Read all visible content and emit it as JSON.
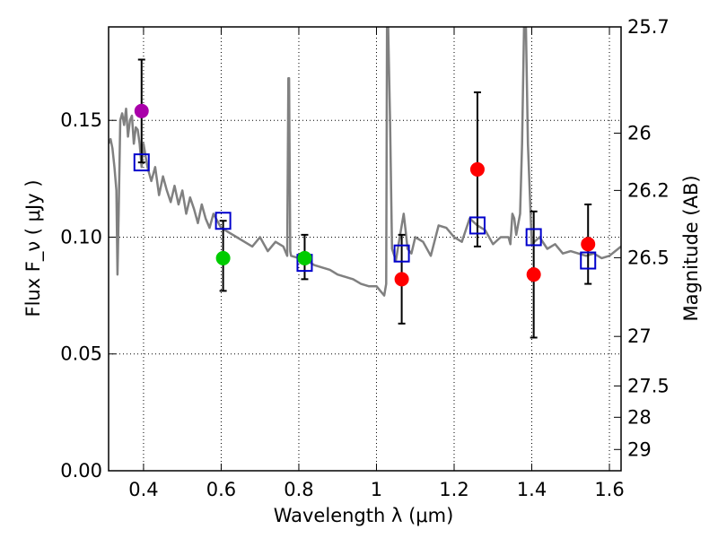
{
  "chart_data": {
    "type": "scatter",
    "title": "",
    "xlabel": "Wavelength  λ (μm)",
    "ylabel": "Flux  F_ν  ( μJy )",
    "ylabel_right": "Magnitude (AB)",
    "xlim": [
      0.31,
      1.63
    ],
    "ylim": [
      0.0,
      0.19
    ],
    "grid": true,
    "x_ticks": [
      0.4,
      0.6,
      0.8,
      1.0,
      1.2,
      1.4,
      1.6
    ],
    "x_tick_labels": [
      "0.4",
      "0.6",
      "0.8",
      "1",
      "1.2",
      "1.4",
      "1.6"
    ],
    "y_ticks": [
      0.0,
      0.05,
      0.1,
      0.15
    ],
    "y_tick_labels": [
      "0.00",
      "0.05",
      "0.10",
      "0.15"
    ],
    "right_ticks": [
      {
        "flux": 0.19,
        "label": "25.7"
      },
      {
        "flux": 0.1445,
        "label": "26"
      },
      {
        "flux": 0.12,
        "label": "26.2"
      },
      {
        "flux": 0.0912,
        "label": "26.5"
      },
      {
        "flux": 0.0575,
        "label": "27"
      },
      {
        "flux": 0.0363,
        "label": "27.5"
      },
      {
        "flux": 0.0229,
        "label": "28"
      },
      {
        "flux": 0.0091,
        "label": "29"
      }
    ],
    "series": [
      {
        "name": "model spectrum",
        "style": "line",
        "color": "#808080",
        "x": [
          0.31,
          0.315,
          0.32,
          0.325,
          0.33,
          0.333,
          0.336,
          0.34,
          0.345,
          0.35,
          0.355,
          0.36,
          0.365,
          0.37,
          0.375,
          0.38,
          0.385,
          0.39,
          0.395,
          0.4,
          0.41,
          0.42,
          0.43,
          0.44,
          0.45,
          0.46,
          0.47,
          0.48,
          0.49,
          0.5,
          0.51,
          0.52,
          0.53,
          0.54,
          0.55,
          0.56,
          0.57,
          0.58,
          0.6,
          0.62,
          0.64,
          0.66,
          0.68,
          0.7,
          0.72,
          0.74,
          0.76,
          0.77,
          0.773,
          0.775,
          0.778,
          0.78,
          0.8,
          0.82,
          0.84,
          0.86,
          0.88,
          0.9,
          0.92,
          0.94,
          0.96,
          0.98,
          1.0,
          1.01,
          1.02,
          1.025,
          1.027,
          1.03,
          1.035,
          1.04,
          1.05,
          1.06,
          1.07,
          1.075,
          1.08,
          1.09,
          1.1,
          1.12,
          1.14,
          1.16,
          1.18,
          1.2,
          1.22,
          1.24,
          1.26,
          1.28,
          1.3,
          1.32,
          1.34,
          1.345,
          1.35,
          1.355,
          1.36,
          1.37,
          1.375,
          1.38,
          1.385,
          1.39,
          1.4,
          1.42,
          1.44,
          1.46,
          1.48,
          1.5,
          1.52,
          1.54,
          1.56,
          1.58,
          1.6,
          1.63
        ],
        "y": [
          0.14,
          0.142,
          0.138,
          0.13,
          0.12,
          0.084,
          0.11,
          0.15,
          0.153,
          0.148,
          0.155,
          0.143,
          0.15,
          0.152,
          0.14,
          0.147,
          0.146,
          0.14,
          0.13,
          0.14,
          0.13,
          0.124,
          0.13,
          0.118,
          0.126,
          0.12,
          0.115,
          0.122,
          0.114,
          0.12,
          0.11,
          0.117,
          0.112,
          0.106,
          0.114,
          0.108,
          0.104,
          0.11,
          0.104,
          0.102,
          0.1,
          0.098,
          0.096,
          0.1,
          0.094,
          0.098,
          0.096,
          0.092,
          0.168,
          0.168,
          0.094,
          0.092,
          0.091,
          0.09,
          0.088,
          0.087,
          0.086,
          0.084,
          0.083,
          0.082,
          0.08,
          0.079,
          0.079,
          0.077,
          0.075,
          0.08,
          0.19,
          0.19,
          0.15,
          0.095,
          0.09,
          0.1,
          0.11,
          0.103,
          0.095,
          0.093,
          0.1,
          0.098,
          0.092,
          0.105,
          0.104,
          0.1,
          0.098,
          0.108,
          0.105,
          0.103,
          0.097,
          0.1,
          0.1,
          0.097,
          0.11,
          0.108,
          0.101,
          0.11,
          0.14,
          0.19,
          0.19,
          0.14,
          0.097,
          0.1,
          0.095,
          0.097,
          0.093,
          0.094,
          0.093,
          0.092,
          0.093,
          0.091,
          0.092,
          0.096
        ]
      },
      {
        "name": "model photometry",
        "style": "open-square",
        "color": "#0000cc",
        "x": [
          0.395,
          0.605,
          0.815,
          1.065,
          1.26,
          1.405,
          1.545
        ],
        "y": [
          0.132,
          0.107,
          0.089,
          0.093,
          0.105,
          0.1,
          0.09
        ]
      },
      {
        "name": "observed (magenta)",
        "style": "filled-circle",
        "color": "#aa00aa",
        "x": [
          0.395
        ],
        "y": [
          0.154
        ],
        "yerr_low": [
          0.132
        ],
        "yerr_high": [
          0.176
        ]
      },
      {
        "name": "observed (green)",
        "style": "filled-circle",
        "color": "#00cc00",
        "x": [
          0.605,
          0.815
        ],
        "y": [
          0.091,
          0.091
        ],
        "yerr_low": [
          0.077,
          0.082
        ],
        "yerr_high": [
          0.107,
          0.101
        ]
      },
      {
        "name": "observed (red)",
        "style": "filled-circle",
        "color": "#ff0000",
        "x": [
          1.065,
          1.26,
          1.405,
          1.545
        ],
        "y": [
          0.082,
          0.129,
          0.084,
          0.097
        ],
        "yerr_low": [
          0.063,
          0.096,
          0.057,
          0.08
        ],
        "yerr_high": [
          0.101,
          0.162,
          0.111,
          0.114
        ]
      }
    ]
  }
}
